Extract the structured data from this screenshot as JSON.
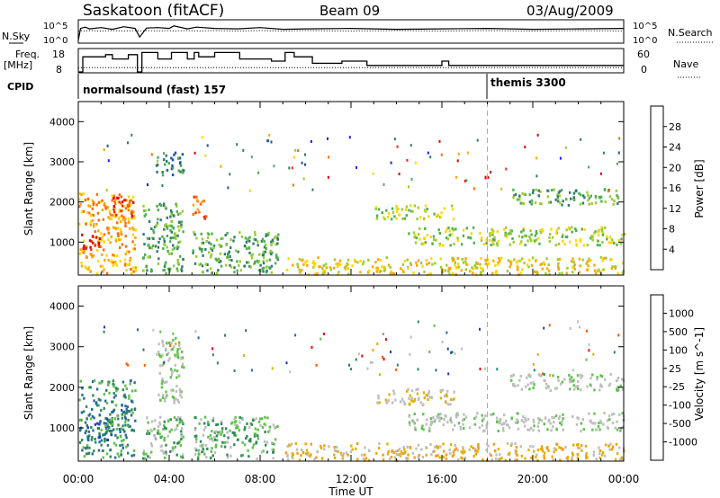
{
  "header": {
    "station": "Saskatoon (fitACF)",
    "beam": "Beam 09",
    "date": "03/Aug/2009"
  },
  "strip_labels": {
    "nsky": "N.Sky",
    "nsky_top": "10^5",
    "nsky_bottom": "10^0",
    "nsearch": "N.Search",
    "nsearch_top": "10^5",
    "nsearch_bottom": "10^0",
    "freq_1": "Freq.",
    "freq_2": "[MHz]",
    "freq_top": "18",
    "freq_bottom": "8",
    "nave": "Nave",
    "nave_top": "60",
    "nave_bottom": "0",
    "cpid": "CPID",
    "cpid_1": "normalsound (fast) 157",
    "cpid_2": "themis 3300"
  },
  "colors": {
    "power": [
      "#1a1aff",
      "#2050b0",
      "#2e7d6e",
      "#4caf50",
      "#9acd32",
      "#ffd700",
      "#ffa500",
      "#ff6a00",
      "#ff2a00",
      "#e00000"
    ],
    "velocity": [
      "#1e3fbf",
      "#2a6a9e",
      "#2e8b57",
      "#5ec24a",
      "#bebebe",
      "#bebebe",
      "#e0b000",
      "#ff9a00",
      "#ff5a00",
      "#ee0000"
    ],
    "dotted": "#000000"
  },
  "chart_data": [
    {
      "type": "line",
      "panel": "N.Sky / N.Search",
      "x_unit": "UT hours",
      "x": [
        0,
        0.1,
        0.3,
        0.5,
        1,
        1.5,
        2,
        2.5,
        2.7,
        3,
        3.5,
        4,
        4.2,
        4.8,
        5.2,
        6,
        7,
        8,
        9,
        10,
        12,
        14,
        16,
        18,
        20,
        22,
        24
      ],
      "series": [
        {
          "name": "N.Sky",
          "values": [
            0.5,
            3.2,
            3.5,
            3.1,
            3.4,
            3.0,
            3.6,
            3.2,
            1.2,
            3.3,
            3.4,
            3.2,
            3.8,
            3.1,
            3.5,
            3.2,
            3.1,
            3.4,
            3.0,
            3.1,
            3.2,
            3.0,
            3.1,
            3.2,
            3.0,
            3.1,
            3.2
          ]
        },
        {
          "name": "N.Search",
          "values": [
            2.6,
            2.7,
            2.6,
            2.7,
            2.6,
            2.7,
            2.6,
            2.7,
            2.6,
            2.7,
            2.6,
            2.7,
            2.6,
            2.7,
            2.6,
            2.7,
            2.6,
            2.7,
            2.6,
            2.7,
            2.6,
            2.7,
            2.6,
            2.7,
            2.6,
            2.7,
            2.6
          ]
        }
      ]
    },
    {
      "type": "line",
      "panel": "Freq / Nave",
      "x_unit": "UT hours",
      "freq_steps": [
        [
          0,
          8
        ],
        [
          0.2,
          15
        ],
        [
          1.2,
          16
        ],
        [
          1.5,
          14
        ],
        [
          2.2,
          16
        ],
        [
          2.6,
          8
        ],
        [
          2.8,
          17
        ],
        [
          3.5,
          14
        ],
        [
          4.1,
          17
        ],
        [
          4.8,
          14
        ],
        [
          5.1,
          17
        ],
        [
          5.3,
          15
        ],
        [
          6,
          17
        ],
        [
          7.1,
          14
        ],
        [
          8.5,
          13
        ],
        [
          9.1,
          17
        ],
        [
          9.5,
          15
        ],
        [
          10.3,
          12
        ],
        [
          11.6,
          13
        ],
        [
          12.7,
          11
        ],
        [
          16,
          13
        ],
        [
          16.3,
          11
        ],
        [
          24,
          11
        ]
      ],
      "nave_level": 12,
      "freq_range": [
        8,
        18
      ],
      "nave_range": [
        0,
        60
      ]
    },
    {
      "type": "heatmap",
      "panel": "Power",
      "xlabel": "",
      "ylabel": "Slant Range [km]",
      "x_ticks": [
        "00:00",
        "04:00",
        "08:00",
        "12:00",
        "16:00",
        "20:00",
        "00:00"
      ],
      "xlim": [
        0,
        24
      ],
      "ylim": [
        180,
        4500
      ],
      "y_ticks": [
        1000,
        2000,
        3000,
        4000
      ],
      "colorbar_label": "Power [dB]",
      "colorbar_ticks": [
        "4",
        "8",
        "12",
        "16",
        "20",
        "24",
        "28"
      ],
      "gaps_ut": [
        [
          2.6,
          2.8
        ],
        [
          4.6,
          5.0
        ],
        [
          8.8,
          9.1
        ]
      ],
      "regions": [
        {
          "t": [
            0.0,
            2.5
          ],
          "r": [
            250,
            2250
          ],
          "level": 6
        },
        {
          "t": [
            0.1,
            1.0
          ],
          "r": [
            850,
            1250
          ],
          "level": 9
        },
        {
          "t": [
            1.5,
            2.4
          ],
          "r": [
            1650,
            2150
          ],
          "level": 8
        },
        {
          "t": [
            2.8,
            4.6
          ],
          "r": [
            250,
            2000
          ],
          "level": 3
        },
        {
          "t": [
            3.4,
            4.6
          ],
          "r": [
            2700,
            3300
          ],
          "level": 2
        },
        {
          "t": [
            5.0,
            5.6
          ],
          "r": [
            1600,
            2200
          ],
          "level": 7
        },
        {
          "t": [
            5.0,
            8.8
          ],
          "r": [
            250,
            1300
          ],
          "level": 3
        },
        {
          "t": [
            9.1,
            24
          ],
          "r": [
            220,
            650
          ],
          "level": 5
        },
        {
          "t": [
            13.0,
            16.5
          ],
          "r": [
            1600,
            1950
          ],
          "level": 4
        },
        {
          "t": [
            14.5,
            24
          ],
          "r": [
            950,
            1400
          ],
          "level": 4
        },
        {
          "t": [
            19,
            24
          ],
          "r": [
            1950,
            2350
          ],
          "level": 3
        }
      ],
      "marker_ut": 18
    },
    {
      "type": "heatmap",
      "panel": "Velocity",
      "xlabel": "Time UT",
      "ylabel": "Slant Range [km]",
      "x_ticks": [
        "00:00",
        "04:00",
        "08:00",
        "12:00",
        "16:00",
        "20:00",
        "00:00"
      ],
      "xlim": [
        0,
        24
      ],
      "ylim": [
        180,
        4500
      ],
      "y_ticks": [
        1000,
        2000,
        3000,
        4000
      ],
      "colorbar_label": "Velocity [m s^-1]",
      "colorbar_ticks": [
        "1000",
        "500",
        "100",
        "25",
        "-25",
        "-100",
        "-500",
        "-1000"
      ],
      "gaps_ut": [
        [
          2.6,
          2.8
        ],
        [
          4.6,
          5.0
        ],
        [
          8.8,
          9.1
        ]
      ],
      "regions": [
        {
          "t": [
            0.0,
            2.5
          ],
          "r": [
            300,
            2200
          ],
          "level": 2
        },
        {
          "t": [
            0.3,
            1.5
          ],
          "r": [
            700,
            1300
          ],
          "level": 1
        },
        {
          "t": [
            2.8,
            8.8
          ],
          "r": [
            250,
            1300
          ],
          "level": 3
        },
        {
          "t": [
            3.4,
            4.6
          ],
          "r": [
            1600,
            3300
          ],
          "level": 4
        },
        {
          "t": [
            9.1,
            24
          ],
          "r": [
            220,
            650
          ],
          "level": 6
        },
        {
          "t": [
            13.0,
            16.5
          ],
          "r": [
            1600,
            2000
          ],
          "level": 5
        },
        {
          "t": [
            14.5,
            24
          ],
          "r": [
            950,
            1400
          ],
          "level": 4
        },
        {
          "t": [
            19,
            24
          ],
          "r": [
            1950,
            2350
          ],
          "level": 4
        }
      ],
      "marker_ut": 18
    }
  ]
}
